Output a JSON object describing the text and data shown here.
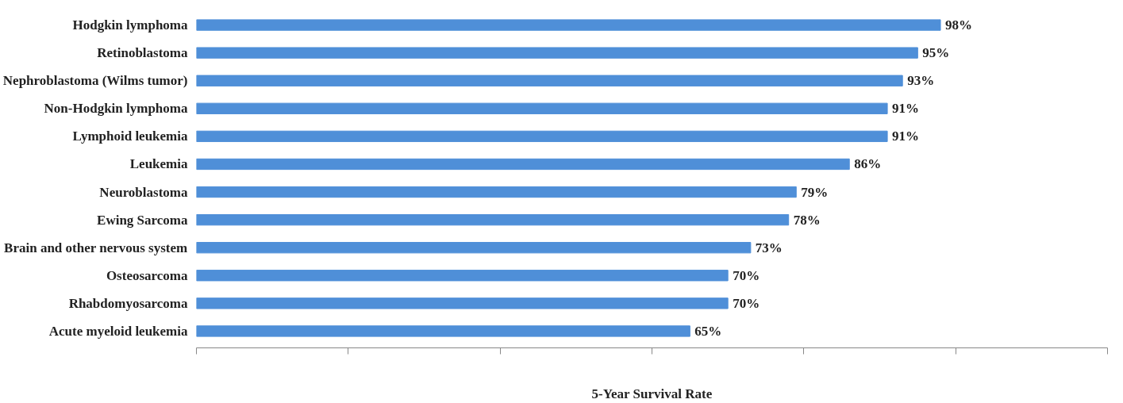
{
  "chart_data": {
    "type": "bar",
    "orientation": "horizontal",
    "xlabel": "5-Year Survival Rate",
    "categories": [
      "Hodgkin lymphoma",
      "Retinoblastoma",
      "Nephroblastoma (Wilms tumor)",
      "Non-Hodgkin lymphoma",
      "Lymphoid leukemia",
      "Leukemia",
      "Neuroblastoma",
      "Ewing Sarcoma",
      "Brain and other nervous system",
      "Osteosarcoma",
      "Rhabdomyosarcoma",
      "Acute myeloid leukemia"
    ],
    "values": [
      98,
      95,
      93,
      91,
      91,
      86,
      79,
      78,
      73,
      70,
      70,
      65
    ],
    "value_labels": [
      "98%",
      "95%",
      "93%",
      "91%",
      "91%",
      "86%",
      "79%",
      "78%",
      "73%",
      "70%",
      "70%",
      "65%"
    ],
    "color": "#4f8fd8",
    "xlim": [
      0,
      120
    ],
    "xticks": [
      {
        "value": 0,
        "label": null
      },
      {
        "value": 20,
        "label": null
      },
      {
        "value": 40,
        "label": null
      },
      {
        "value": 60,
        "label": null
      },
      {
        "value": 80,
        "label": null
      },
      {
        "value": 100,
        "label": null
      },
      {
        "value": 120,
        "label": null
      }
    ],
    "tick_labels": "y",
    "grid": false
  }
}
